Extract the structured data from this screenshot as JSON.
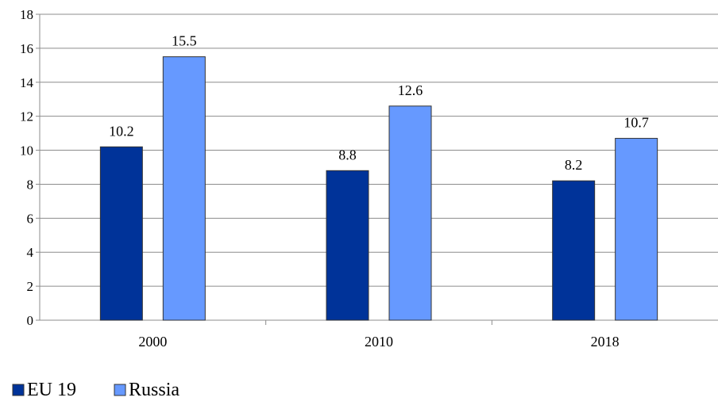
{
  "chart_data": {
    "type": "bar",
    "categories": [
      "2000",
      "2010",
      "2018"
    ],
    "series": [
      {
        "name": "EU 19",
        "values": [
          10.2,
          8.8,
          8.2
        ],
        "labels": [
          "10.2",
          "8.8",
          "8.2"
        ],
        "color": "#003399"
      },
      {
        "name": "Russia",
        "values": [
          15.5,
          12.6,
          10.7
        ],
        "labels": [
          "15.5",
          "12.6",
          "10.7"
        ],
        "color": "#6699ff"
      }
    ],
    "ylim": [
      0,
      18
    ],
    "yticks": [
      0,
      2,
      4,
      6,
      8,
      10,
      12,
      14,
      16,
      18
    ],
    "grid": true,
    "legend": "bottom-left",
    "title": "",
    "xlabel": "",
    "ylabel": ""
  }
}
